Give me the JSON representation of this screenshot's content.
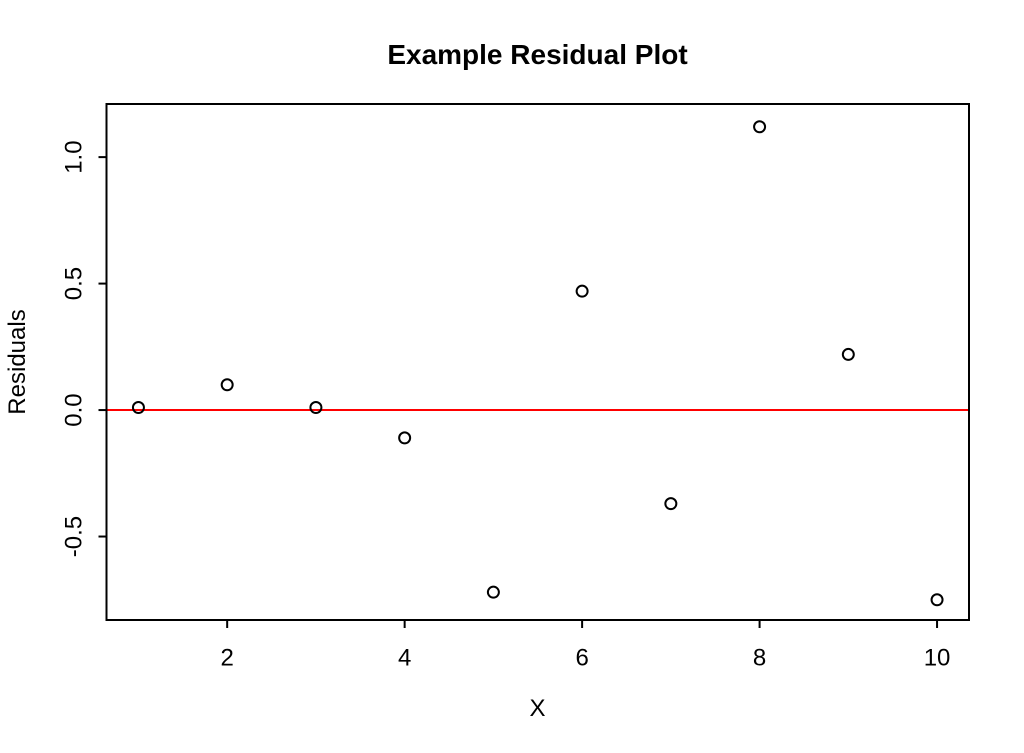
{
  "chart_data": {
    "type": "scatter",
    "title": "Example Residual Plot",
    "xlabel": "X",
    "ylabel": "Residuals",
    "series": [
      {
        "name": "residuals",
        "x": [
          1,
          2,
          3,
          4,
          5,
          6,
          7,
          8,
          9,
          10
        ],
        "y": [
          0.01,
          0.1,
          0.01,
          -0.11,
          -0.72,
          0.47,
          -0.37,
          1.12,
          0.22,
          -0.75
        ]
      }
    ],
    "xlim": [
      0.64,
      10.36
    ],
    "ylim": [
      -0.83,
      1.21
    ],
    "x_ticks": {
      "values": [
        2,
        4,
        6,
        8,
        10
      ],
      "labels": [
        "2",
        "4",
        "6",
        "8",
        "10"
      ]
    },
    "y_ticks": {
      "values": [
        -0.5,
        0,
        0.5,
        1
      ],
      "labels": [
        "-0.5",
        "0.0",
        "0.5",
        "1.0"
      ]
    },
    "reference_line": {
      "y": 0,
      "color": "#ff0000"
    },
    "grid": "off",
    "legend": "none",
    "marker": "open-circle",
    "colors": {
      "points": "#000000",
      "frame": "#000000",
      "text": "#000000",
      "background": "#ffffff"
    }
  }
}
